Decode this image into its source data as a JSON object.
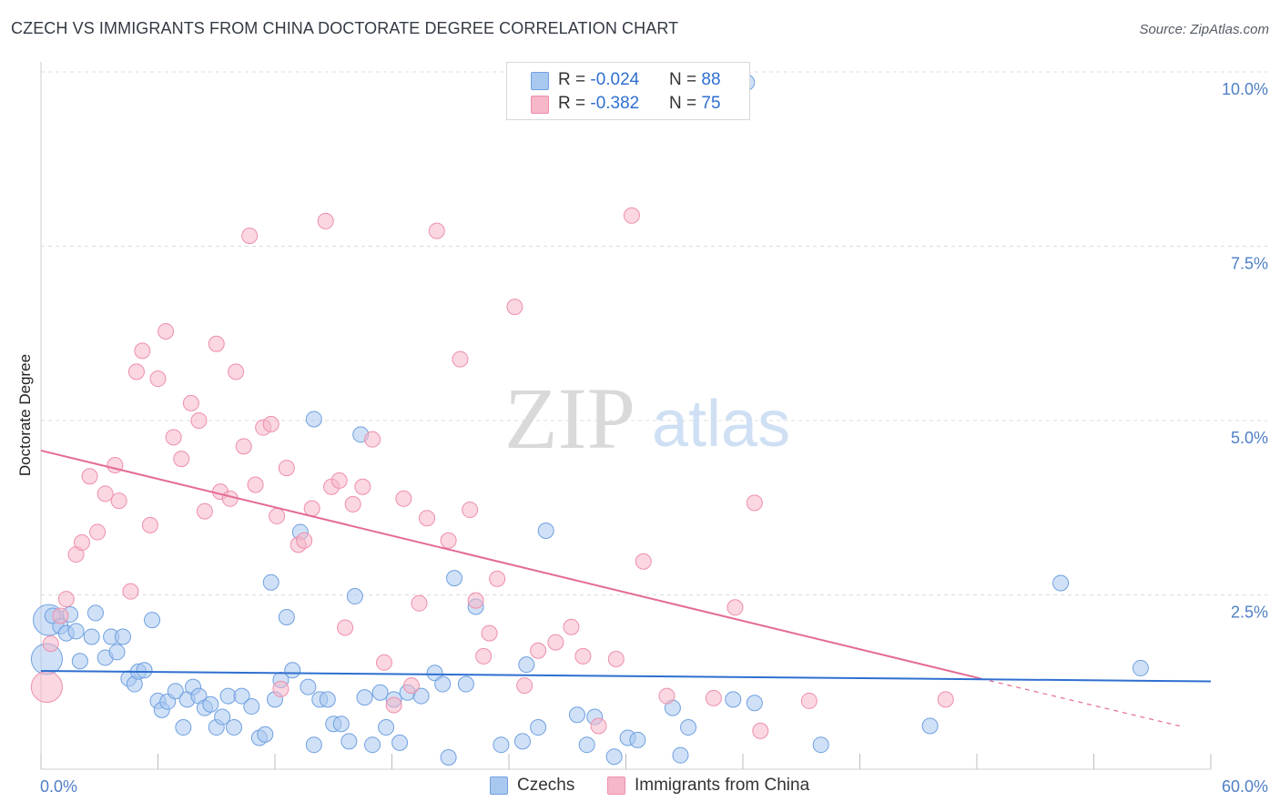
{
  "header": {
    "title": "CZECH VS IMMIGRANTS FROM CHINA DOCTORATE DEGREE CORRELATION CHART",
    "source": "Source: ZipAtlas.com"
  },
  "watermark": {
    "zip": "ZIP",
    "atlas": "atlas"
  },
  "legend": {
    "rows": [
      {
        "r_label": "R = ",
        "r_value": "-0.024",
        "n_label": "N = ",
        "n_value": "88",
        "color": "#a9c8f0"
      },
      {
        "r_label": "R = ",
        "r_value": "-0.382",
        "n_label": "N = ",
        "n_value": "75",
        "color": "#f6b7c8"
      }
    ]
  },
  "bottom_legend": [
    {
      "label": "Czechs",
      "color": "#a9c8f0"
    },
    {
      "label": "Immigrants from China",
      "color": "#f6b7c8"
    }
  ],
  "colors": {
    "blue_fill": "#a9c8f0",
    "blue_stroke": "#6fa0e0",
    "blue_line": "#2f6fd0",
    "pink_fill": "#f6b7c8",
    "pink_stroke": "#ee8fab",
    "pink_line": "#e46a96",
    "grid": "#dcdcdc",
    "axis_text": "#4f7fc6"
  },
  "chart_data": {
    "type": "scatter",
    "title": "CZECH VS IMMIGRANTS FROM CHINA DOCTORATE DEGREE CORRELATION CHART",
    "xlabel": "",
    "ylabel": "Doctorate Degree",
    "xlim": [
      0,
      60
    ],
    "ylim": [
      0,
      10
    ],
    "x_tick_labels": [
      "0.0%",
      "60.0%"
    ],
    "y_ticks": [
      2.5,
      5.0,
      7.5,
      10.0
    ],
    "y_tick_labels": [
      "2.5%",
      "5.0%",
      "7.5%",
      "10.0%"
    ],
    "grid": true,
    "series": [
      {
        "name": "Czechs",
        "R": -0.024,
        "N": 88,
        "trend": {
          "x0": 0,
          "y0": 1.41,
          "x1": 60,
          "y1": 1.26
        },
        "points": [
          [
            0.4,
            2.14
          ],
          [
            0.6,
            2.2
          ],
          [
            1.0,
            2.05
          ],
          [
            1.3,
            1.95
          ],
          [
            1.5,
            2.22
          ],
          [
            1.8,
            1.98
          ],
          [
            2.0,
            1.55
          ],
          [
            2.6,
            1.9
          ],
          [
            3.3,
            1.6
          ],
          [
            3.6,
            1.9
          ],
          [
            3.9,
            1.68
          ],
          [
            4.2,
            1.9
          ],
          [
            4.5,
            1.3
          ],
          [
            4.8,
            1.22
          ],
          [
            5.0,
            1.4
          ],
          [
            5.3,
            1.42
          ],
          [
            5.7,
            2.14
          ],
          [
            6.0,
            0.98
          ],
          [
            6.2,
            0.85
          ],
          [
            6.5,
            0.97
          ],
          [
            6.9,
            1.12
          ],
          [
            7.3,
            0.6
          ],
          [
            7.5,
            1.0
          ],
          [
            7.8,
            1.18
          ],
          [
            8.1,
            1.05
          ],
          [
            8.4,
            0.88
          ],
          [
            8.7,
            0.93
          ],
          [
            9.0,
            0.6
          ],
          [
            9.3,
            0.75
          ],
          [
            9.6,
            1.05
          ],
          [
            9.9,
            0.6
          ],
          [
            10.3,
            1.05
          ],
          [
            10.8,
            0.9
          ],
          [
            11.2,
            0.45
          ],
          [
            11.5,
            0.5
          ],
          [
            11.8,
            2.68
          ],
          [
            12.0,
            1.0
          ],
          [
            12.3,
            1.28
          ],
          [
            12.6,
            2.18
          ],
          [
            12.9,
            1.42
          ],
          [
            13.3,
            3.4
          ],
          [
            13.7,
            1.18
          ],
          [
            14.0,
            0.35
          ],
          [
            14.3,
            1.0
          ],
          [
            14.7,
            1.0
          ],
          [
            15.0,
            0.65
          ],
          [
            15.4,
            0.65
          ],
          [
            15.8,
            0.4
          ],
          [
            16.1,
            2.48
          ],
          [
            16.6,
            1.03
          ],
          [
            17.0,
            0.35
          ],
          [
            17.4,
            1.1
          ],
          [
            17.7,
            0.6
          ],
          [
            18.1,
            1.0
          ],
          [
            18.4,
            0.38
          ],
          [
            18.8,
            1.1
          ],
          [
            19.5,
            1.05
          ],
          [
            20.2,
            1.38
          ],
          [
            20.6,
            1.22
          ],
          [
            20.9,
            0.17
          ],
          [
            21.2,
            2.74
          ],
          [
            21.8,
            1.22
          ],
          [
            22.3,
            2.33
          ],
          [
            23.6,
            0.35
          ],
          [
            24.7,
            0.4
          ],
          [
            24.9,
            1.5
          ],
          [
            25.5,
            0.6
          ],
          [
            25.9,
            3.42
          ],
          [
            27.5,
            0.78
          ],
          [
            28.0,
            0.35
          ],
          [
            28.4,
            0.75
          ],
          [
            29.4,
            0.18
          ],
          [
            30.1,
            0.45
          ],
          [
            30.6,
            0.42
          ],
          [
            32.4,
            0.88
          ],
          [
            32.8,
            0.2
          ],
          [
            33.2,
            0.6
          ],
          [
            35.5,
            1.0
          ],
          [
            36.6,
            0.95
          ],
          [
            40.0,
            0.35
          ],
          [
            45.6,
            0.62
          ],
          [
            52.3,
            2.67
          ],
          [
            56.4,
            1.45
          ],
          [
            14.0,
            5.02
          ],
          [
            16.4,
            4.8
          ],
          [
            36.2,
            9.85
          ],
          [
            0.3,
            1.58
          ],
          [
            2.8,
            2.24
          ]
        ]
      },
      {
        "name": "Immigrants from China",
        "R": -0.382,
        "N": 75,
        "trend": {
          "x0": 0,
          "y0": 4.57,
          "x1": 48.2,
          "y1": 1.3,
          "dashed_to_x": 58.4,
          "dashed_to_y": 0.62
        },
        "points": [
          [
            0.3,
            1.18
          ],
          [
            0.5,
            1.8
          ],
          [
            1.0,
            2.2
          ],
          [
            1.3,
            2.44
          ],
          [
            1.8,
            3.08
          ],
          [
            2.1,
            3.25
          ],
          [
            2.5,
            4.2
          ],
          [
            2.9,
            3.4
          ],
          [
            3.3,
            3.95
          ],
          [
            3.8,
            4.36
          ],
          [
            4.0,
            3.85
          ],
          [
            4.6,
            2.55
          ],
          [
            4.9,
            5.7
          ],
          [
            5.2,
            6.0
          ],
          [
            5.6,
            3.5
          ],
          [
            6.0,
            5.6
          ],
          [
            6.4,
            6.28
          ],
          [
            6.8,
            4.76
          ],
          [
            7.2,
            4.45
          ],
          [
            7.7,
            5.25
          ],
          [
            8.1,
            5.0
          ],
          [
            8.4,
            3.7
          ],
          [
            9.0,
            6.1
          ],
          [
            9.2,
            3.98
          ],
          [
            9.7,
            3.88
          ],
          [
            10.0,
            5.7
          ],
          [
            10.4,
            4.63
          ],
          [
            10.7,
            7.65
          ],
          [
            11.0,
            4.08
          ],
          [
            11.4,
            4.9
          ],
          [
            11.8,
            4.95
          ],
          [
            12.1,
            3.63
          ],
          [
            12.6,
            4.32
          ],
          [
            13.2,
            3.22
          ],
          [
            13.5,
            3.28
          ],
          [
            13.9,
            3.74
          ],
          [
            14.6,
            7.86
          ],
          [
            14.9,
            4.05
          ],
          [
            15.3,
            4.14
          ],
          [
            15.6,
            2.03
          ],
          [
            16.0,
            3.8
          ],
          [
            16.5,
            4.05
          ],
          [
            17.0,
            4.73
          ],
          [
            17.6,
            1.53
          ],
          [
            18.1,
            0.92
          ],
          [
            18.6,
            3.88
          ],
          [
            19.0,
            1.2
          ],
          [
            19.4,
            2.38
          ],
          [
            19.8,
            3.6
          ],
          [
            20.3,
            7.72
          ],
          [
            20.9,
            3.28
          ],
          [
            21.5,
            5.88
          ],
          [
            22.0,
            3.72
          ],
          [
            22.3,
            2.42
          ],
          [
            22.7,
            1.62
          ],
          [
            23.0,
            1.95
          ],
          [
            23.4,
            2.73
          ],
          [
            24.3,
            6.63
          ],
          [
            24.8,
            1.2
          ],
          [
            25.5,
            1.7
          ],
          [
            26.4,
            1.82
          ],
          [
            27.2,
            2.04
          ],
          [
            27.8,
            1.62
          ],
          [
            28.6,
            0.62
          ],
          [
            29.5,
            1.58
          ],
          [
            30.3,
            7.94
          ],
          [
            30.9,
            2.98
          ],
          [
            32.1,
            1.05
          ],
          [
            35.6,
            2.32
          ],
          [
            36.6,
            3.82
          ],
          [
            36.9,
            0.55
          ],
          [
            39.4,
            0.98
          ],
          [
            46.4,
            1.0
          ],
          [
            12.3,
            1.15
          ],
          [
            34.5,
            1.02
          ]
        ]
      }
    ]
  }
}
